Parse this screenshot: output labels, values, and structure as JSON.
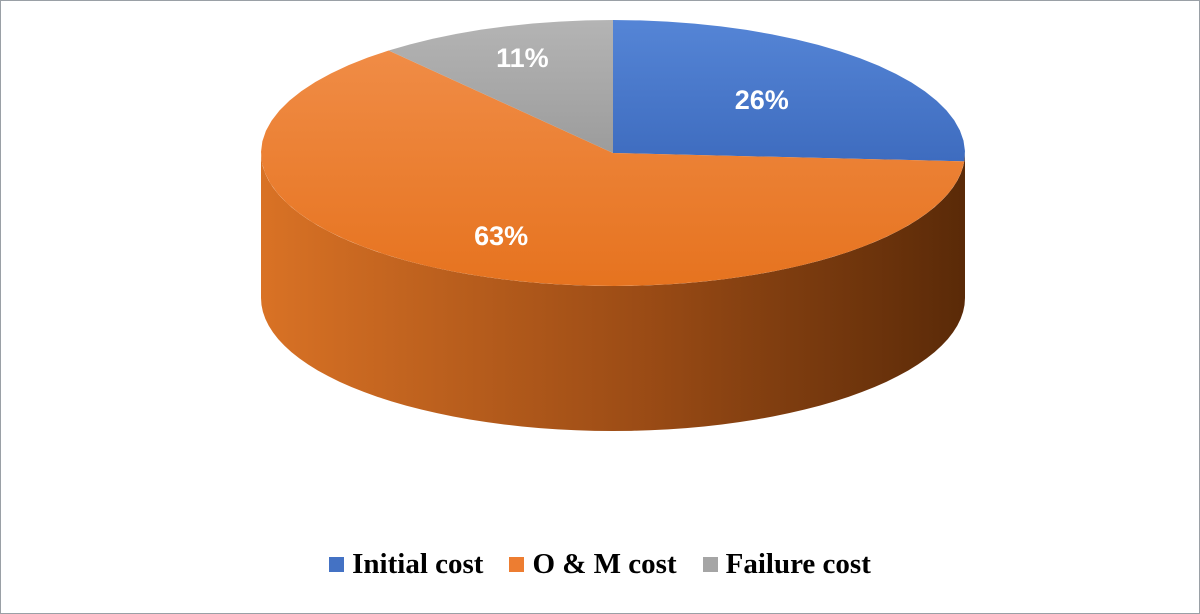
{
  "chart_data": {
    "type": "pie",
    "style": "3d",
    "categories": [
      "Initial cost",
      "O & M cost",
      "Failure cost"
    ],
    "values": [
      26,
      63,
      11
    ],
    "labels": [
      "26%",
      "63%",
      "11%"
    ],
    "colors": [
      "#4472C4",
      "#ED7D31",
      "#A5A5A5"
    ],
    "legend_position": "bottom"
  }
}
